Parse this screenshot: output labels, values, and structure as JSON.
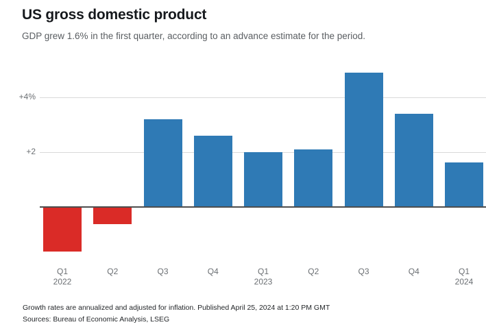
{
  "header": {
    "title": "US gross domestic product",
    "subtitle": "GDP grew 1.6% in the first quarter, according to an advance estimate for the period."
  },
  "chart_data": {
    "type": "bar",
    "title": "US gross domestic product",
    "categories": [
      "Q1 2022",
      "Q2 2022",
      "Q3 2022",
      "Q4 2022",
      "Q1 2023",
      "Q2 2023",
      "Q3 2023",
      "Q4 2023",
      "Q1 2024"
    ],
    "x_tick_quarters": [
      "Q1",
      "Q2",
      "Q3",
      "Q4",
      "Q1",
      "Q2",
      "Q3",
      "Q4",
      "Q1"
    ],
    "x_tick_years": [
      "2022",
      "",
      "",
      "",
      "2023",
      "",
      "",
      "",
      "2024"
    ],
    "values": [
      -1.6,
      -0.6,
      3.2,
      2.6,
      2.0,
      2.1,
      4.9,
      3.4,
      1.6
    ],
    "yticks": [
      {
        "value": 2,
        "label": "+2"
      },
      {
        "value": 4,
        "label": "+4%"
      }
    ],
    "ylim": [
      -2.2,
      5.1
    ],
    "grid": true,
    "legend_position": "none",
    "colors": {
      "positive": "#2f7ab5",
      "negative": "#da2b27",
      "gridline": "#d9d9d9",
      "axis_line": "#4d4d4d",
      "tick_text": "#6b6f73"
    }
  },
  "footer": {
    "note": "Growth rates are annualized and adjusted for inflation. Published April 25, 2024 at 1:20 PM GMT",
    "sources": "Sources: Bureau of Economic Analysis, LSEG"
  }
}
